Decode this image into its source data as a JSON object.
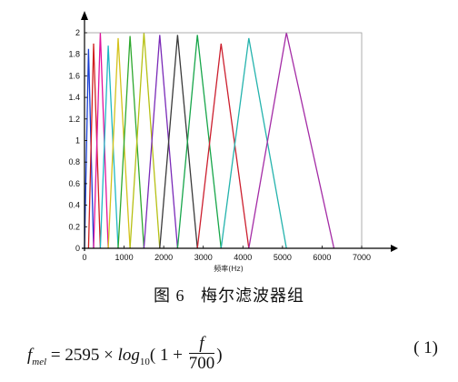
{
  "figure": {
    "caption_label": "图 6",
    "caption_title": "梅尔滤波器组"
  },
  "chart_data": {
    "type": "line",
    "title": "",
    "xlabel": "频率(Hz)",
    "ylabel": "",
    "xlim": [
      0,
      7000
    ],
    "ylim": [
      0,
      2
    ],
    "x_ticks": [
      0,
      1000,
      2000,
      3000,
      4000,
      5000,
      6000,
      7000
    ],
    "y_ticks": [
      0,
      0.2,
      0.4,
      0.6,
      0.8,
      1,
      1.2,
      1.4,
      1.6,
      1.8,
      2
    ],
    "grid": false,
    "series": [
      {
        "color": "#1a3fd4",
        "points": [
          [
            0,
            0
          ],
          [
            100,
            1.85
          ],
          [
            230,
            0
          ]
        ]
      },
      {
        "color": "#d11f1f",
        "points": [
          [
            100,
            0
          ],
          [
            230,
            1.9
          ],
          [
            400,
            0
          ]
        ]
      },
      {
        "color": "#e0139c",
        "points": [
          [
            230,
            0
          ],
          [
            400,
            2.0
          ],
          [
            600,
            0
          ]
        ]
      },
      {
        "color": "#1fb8c4",
        "points": [
          [
            400,
            0
          ],
          [
            600,
            1.88
          ],
          [
            850,
            0
          ]
        ]
      },
      {
        "color": "#d4c21a",
        "points": [
          [
            600,
            0
          ],
          [
            850,
            1.95
          ],
          [
            1150,
            0
          ]
        ]
      },
      {
        "color": "#2ea82e",
        "points": [
          [
            850,
            0
          ],
          [
            1150,
            1.97
          ],
          [
            1500,
            0
          ]
        ]
      },
      {
        "color": "#b6c013",
        "points": [
          [
            1150,
            0
          ],
          [
            1500,
            2.0
          ],
          [
            1900,
            0
          ]
        ]
      },
      {
        "color": "#7a2ab8",
        "points": [
          [
            1500,
            0
          ],
          [
            1900,
            1.98
          ],
          [
            2350,
            0
          ]
        ]
      },
      {
        "color": "#3a3a3a",
        "points": [
          [
            1900,
            0
          ],
          [
            2350,
            1.98
          ],
          [
            2850,
            0
          ]
        ]
      },
      {
        "color": "#17a64a",
        "points": [
          [
            2350,
            0
          ],
          [
            2850,
            1.98
          ],
          [
            3450,
            0
          ]
        ]
      },
      {
        "color": "#cc1f2e",
        "points": [
          [
            2850,
            0
          ],
          [
            3450,
            1.9
          ],
          [
            4150,
            0
          ]
        ]
      },
      {
        "color": "#24b3ad",
        "points": [
          [
            3450,
            0
          ],
          [
            4150,
            1.95
          ],
          [
            5100,
            0
          ]
        ]
      },
      {
        "color": "#a42ca6",
        "points": [
          [
            4150,
            0
          ],
          [
            5100,
            2.0
          ],
          [
            6300,
            0
          ]
        ]
      }
    ]
  },
  "equation": {
    "lhs": "f",
    "lhs_sub": "mel",
    "rhs_const": "= 2595 ×",
    "log_word": "log",
    "log_base": "10",
    "paren_open": "( 1 +",
    "frac_num": "f",
    "frac_den": "700",
    "paren_close": ")",
    "number": "( 1)"
  }
}
